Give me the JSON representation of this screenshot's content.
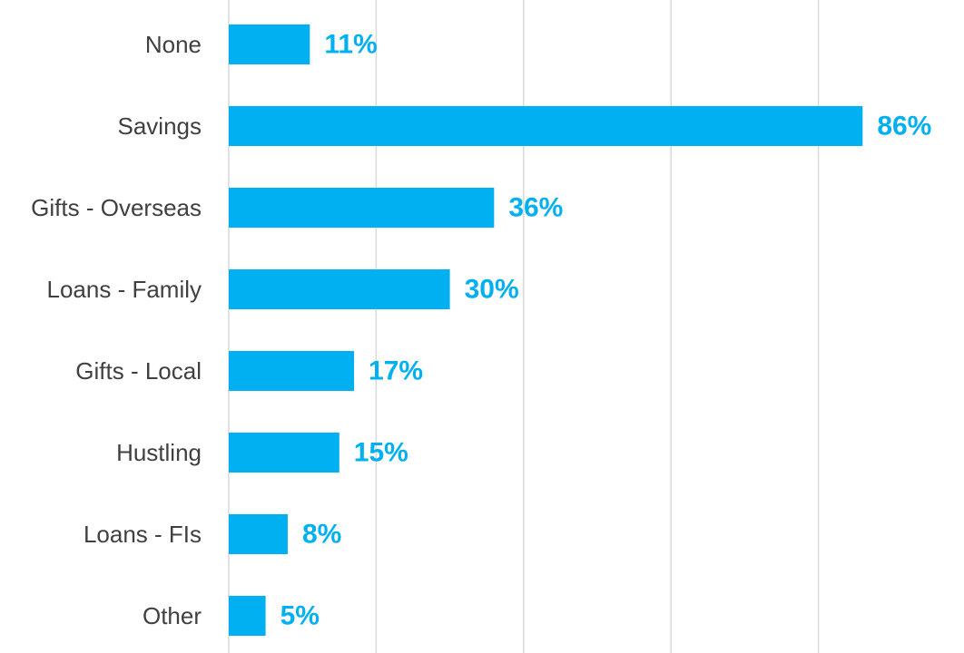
{
  "chart_data": {
    "type": "bar",
    "orientation": "horizontal",
    "categories": [
      "None",
      "Savings",
      "Gifts - Overseas",
      "Loans - Family",
      "Gifts - Local",
      "Hustling",
      "Loans - FIs",
      "Other"
    ],
    "values": [
      11,
      86,
      36,
      30,
      17,
      15,
      8,
      5
    ],
    "data_labels": [
      "11%",
      "86%",
      "36%",
      "30%",
      "17%",
      "15%",
      "8%",
      "5%"
    ],
    "title": "",
    "xlabel": "",
    "ylabel": "",
    "xlim": [
      0,
      100
    ],
    "gridlines": [
      0,
      20,
      40,
      60,
      80,
      100
    ],
    "grid": true,
    "legend": "none",
    "colors": {
      "bar": "#00B0F0",
      "label": "#00B0F0",
      "category_text": "#404040",
      "grid": "#D9D9D9"
    }
  }
}
